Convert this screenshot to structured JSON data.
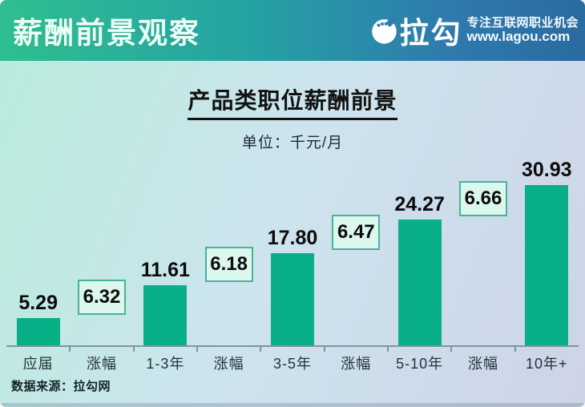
{
  "header": {
    "title": "薪酬前景观察",
    "logo_text": "拉勾",
    "tagline_line1": "专注互联网职业机会",
    "tagline_line2": "www.lagou.com"
  },
  "chart": {
    "title": "产品类职位薪酬前景",
    "unit_label": "单位：千元/月",
    "source": "数据来源：拉勾网"
  },
  "chart_data": {
    "type": "bar",
    "title": "产品类职位薪酬前景",
    "unit": "千元/月",
    "categories": [
      "应届",
      "涨幅",
      "1-3年",
      "涨幅",
      "3-5年",
      "涨幅",
      "5-10年",
      "涨幅",
      "10年+"
    ],
    "values": [
      5.29,
      6.32,
      11.61,
      6.18,
      17.8,
      6.47,
      24.27,
      6.66,
      30.93
    ],
    "kinds": [
      "bar",
      "delta",
      "bar",
      "delta",
      "bar",
      "delta",
      "bar",
      "delta",
      "bar"
    ],
    "ylim": [
      0,
      32
    ],
    "legend": "none",
    "grid": false,
    "colors": {
      "bar": "#09af86",
      "delta_box_fill": "#dcf7ee",
      "delta_box_border": "#48b295",
      "value_text": "#0c0c0c",
      "axis": "#7f95a0",
      "banner_gradient_left": "#2fbe90",
      "banner_gradient_right": "#2a6ba1"
    }
  }
}
